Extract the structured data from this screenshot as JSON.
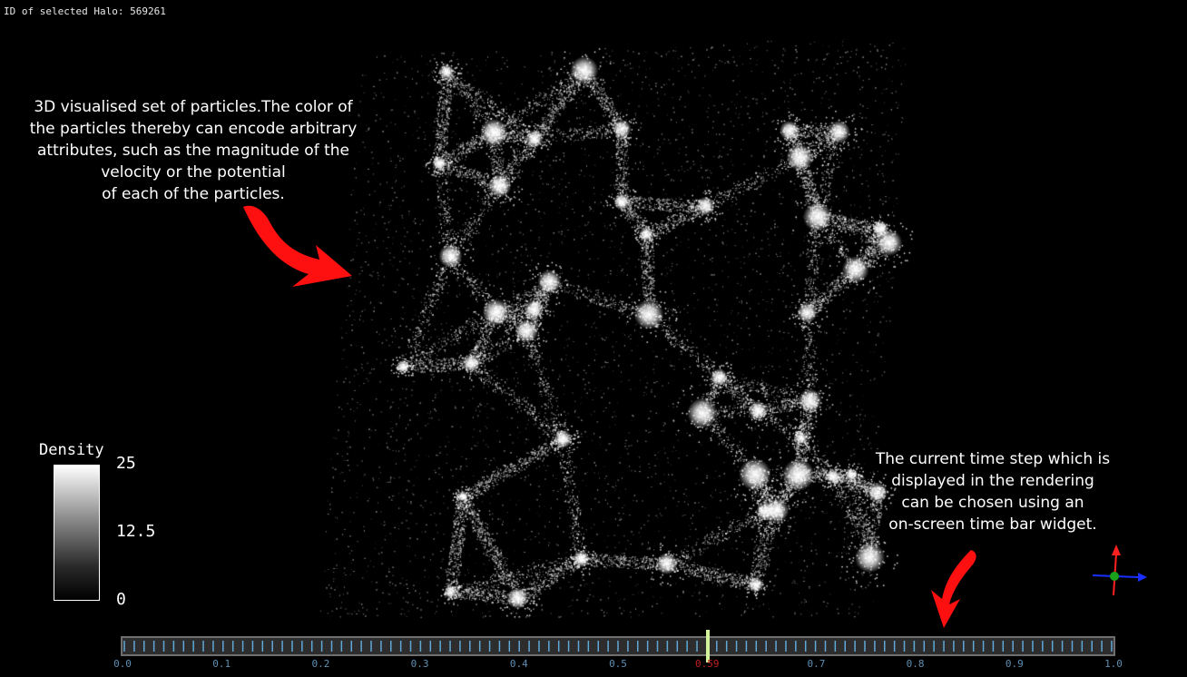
{
  "status": {
    "label": "ID of selected Halo:",
    "halo_id": "569261"
  },
  "annotations": {
    "particles_lines": [
      "3D visualised set of particles.The color of",
      "the particles thereby can encode arbitrary",
      "attributes, such as the magnitude of the",
      "velocity or the potential",
      "of each of the particles."
    ],
    "time_lines": [
      "The current time step which is",
      "displayed in the rendering",
      "can be chosen using an",
      "on-screen time bar widget."
    ],
    "arrow_color": "#ff1010"
  },
  "legend": {
    "title": "Density",
    "max": "25",
    "mid": "12.5",
    "min": "0"
  },
  "timebar": {
    "value": 0.59,
    "labels": [
      "0.0",
      "0.1",
      "0.2",
      "0.3",
      "0.4",
      "0.5",
      "0.59",
      "0.7",
      "0.8",
      "0.9",
      "1.0"
    ],
    "label_values": [
      0.0,
      0.1,
      0.2,
      0.3,
      0.4,
      0.5,
      0.59,
      0.7,
      0.8,
      0.9,
      1.0
    ],
    "current_label": "0.59",
    "tick_count": 100,
    "tick_color": "#5fa8d8",
    "cursor_color": "#d4f29a"
  },
  "axes_gizmo": {
    "x_color": "#1a2fff",
    "y_color": "#ff2020",
    "origin_color": "#1aa01a"
  }
}
